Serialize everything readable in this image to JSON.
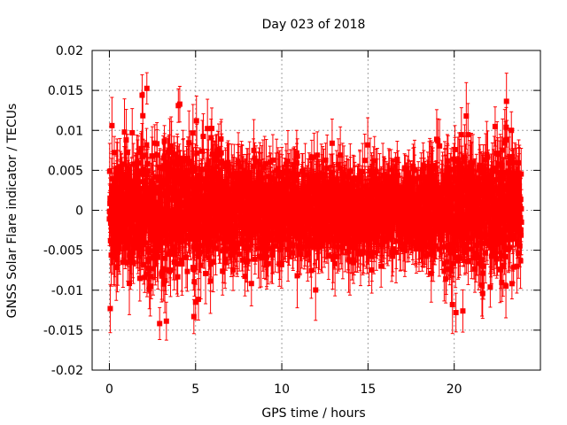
{
  "chart_data": {
    "type": "scatter",
    "title": "Day 023 of 2018",
    "xlabel": "GPS time / hours",
    "ylabel": "GNSS Solar Flare indicator / TECUs",
    "xlim": [
      -1,
      25
    ],
    "ylim": [
      -0.02,
      0.02
    ],
    "grid": true,
    "x_ticks": [
      0,
      5,
      10,
      15,
      20
    ],
    "x_tick_labels": [
      "0",
      "5",
      "10",
      "15",
      "20"
    ],
    "y_ticks": [
      -0.02,
      -0.015,
      -0.01,
      -0.005,
      0,
      0.005,
      0.01,
      0.015,
      0.02
    ],
    "y_tick_labels": [
      "-0.02",
      "-0.015",
      "-0.01",
      "-0.005",
      "0",
      "0.005",
      "0.01",
      "0.015",
      "0.02"
    ],
    "series": [
      {
        "name": "solar flare indicator",
        "color": "#ff0000",
        "marker": "square",
        "error_bars": true,
        "x_range": [
          0,
          23.9
        ],
        "x_step": 0.00833,
        "noise_envelope": [
          {
            "x": 0,
            "sigma": 0.0035
          },
          {
            "x": 3,
            "sigma": 0.0042
          },
          {
            "x": 6,
            "sigma": 0.0038
          },
          {
            "x": 10,
            "sigma": 0.0028
          },
          {
            "x": 14,
            "sigma": 0.0025
          },
          {
            "x": 17,
            "sigma": 0.0022
          },
          {
            "x": 20,
            "sigma": 0.0036
          },
          {
            "x": 22,
            "sigma": 0.004
          },
          {
            "x": 23.9,
            "sigma": 0.0032
          }
        ],
        "error_bar_halfwidth": 0.003,
        "notable_points": [
          {
            "x": 0.05,
            "y": -0.0123
          },
          {
            "x": 0.15,
            "y": 0.0106
          },
          {
            "x": 1.9,
            "y": 0.0144
          },
          {
            "x": 4.0,
            "y": 0.0131
          },
          {
            "x": 4.9,
            "y": -0.0133
          },
          {
            "x": 5.0,
            "y": -0.0115
          },
          {
            "x": 5.05,
            "y": 0.0112
          },
          {
            "x": 19.9,
            "y": -0.0118
          },
          {
            "x": 20.1,
            "y": -0.0128
          },
          {
            "x": 20.5,
            "y": -0.0126
          },
          {
            "x": 20.7,
            "y": 0.0118
          }
        ]
      }
    ]
  }
}
